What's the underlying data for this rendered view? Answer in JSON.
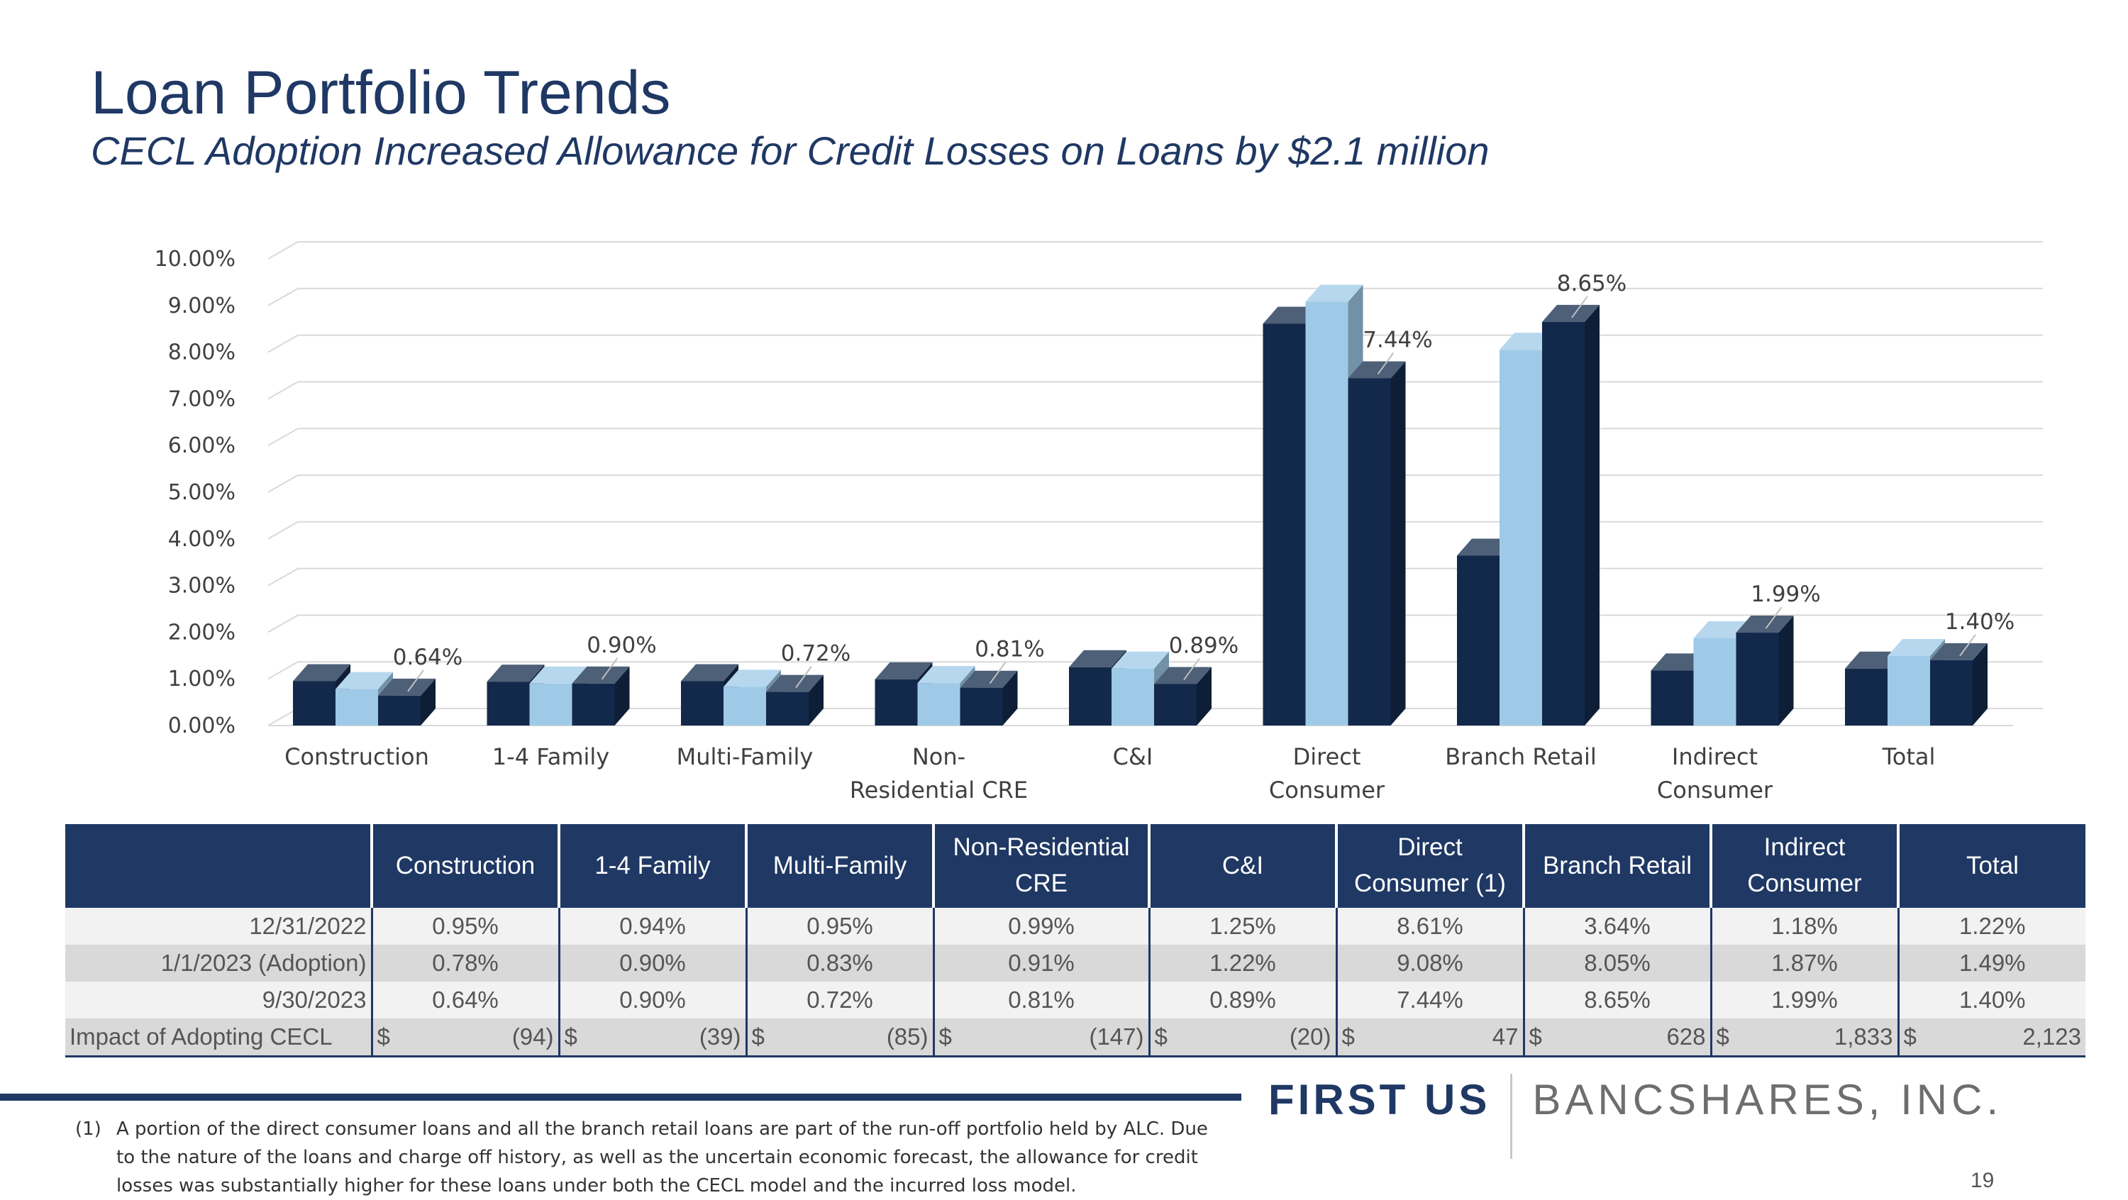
{
  "title": "Loan Portfolio Trends",
  "subtitle": "CECL Adoption Increased Allowance for Credit Losses on Loans by $2.1 million",
  "colors": {
    "dark_navy": "#13294b",
    "light_blue": "#9ecae8",
    "header": "#1f3864"
  },
  "chart_data": {
    "type": "bar",
    "title": "",
    "xlabel": "",
    "ylabel": "",
    "ylim": [
      0,
      10
    ],
    "yticks": [
      "0.00%",
      "1.00%",
      "2.00%",
      "3.00%",
      "4.00%",
      "5.00%",
      "6.00%",
      "7.00%",
      "8.00%",
      "9.00%",
      "10.00%"
    ],
    "categories": [
      "Construction",
      "1-4 Family",
      "Multi-Family",
      "Non-Residential CRE",
      "C&I",
      "Direct Consumer",
      "Branch Retail",
      "Indirect Consumer",
      "Total"
    ],
    "category_lines": [
      [
        "Construction"
      ],
      [
        "1-4 Family"
      ],
      [
        "Multi-Family"
      ],
      [
        "Non-",
        "Residential CRE"
      ],
      [
        "C&I"
      ],
      [
        "Direct",
        "Consumer"
      ],
      [
        "Branch Retail"
      ],
      [
        "Indirect",
        "Consumer"
      ],
      [
        "Total"
      ]
    ],
    "series": [
      {
        "name": "12/31/2022",
        "color": "#13294b",
        "values": [
          0.95,
          0.94,
          0.95,
          0.99,
          1.25,
          8.61,
          3.64,
          1.18,
          1.22
        ]
      },
      {
        "name": "1/1/2023 (Adoption)",
        "color": "#9ecae8",
        "values": [
          0.78,
          0.9,
          0.83,
          0.91,
          1.22,
          9.08,
          8.05,
          1.87,
          1.49
        ]
      },
      {
        "name": "9/30/2023",
        "color": "#13294b",
        "values": [
          0.64,
          0.9,
          0.72,
          0.81,
          0.89,
          7.44,
          8.65,
          1.99,
          1.4
        ]
      }
    ],
    "data_labels": [
      "0.64%",
      "0.90%",
      "0.72%",
      "0.81%",
      "0.89%",
      "7.44%",
      "8.65%",
      "1.99%",
      "1.40%"
    ],
    "grid": true,
    "legend": "none"
  },
  "table": {
    "headers": [
      "",
      "Construction",
      "1-4 Family",
      "Multi-Family",
      "Non-Residential CRE",
      "C&I",
      "Direct Consumer (1)",
      "Branch Retail",
      "Indirect Consumer",
      "Total"
    ],
    "rows": [
      {
        "label": "12/31/2022",
        "cells": [
          "0.95%",
          "0.94%",
          "0.95%",
          "0.99%",
          "1.25%",
          "8.61%",
          "3.64%",
          "1.18%",
          "1.22%"
        ]
      },
      {
        "label": "1/1/2023 (Adoption)",
        "cells": [
          "0.78%",
          "0.90%",
          "0.83%",
          "0.91%",
          "1.22%",
          "9.08%",
          "8.05%",
          "1.87%",
          "1.49%"
        ]
      },
      {
        "label": "9/30/2023",
        "cells": [
          "0.64%",
          "0.90%",
          "0.72%",
          "0.81%",
          "0.89%",
          "7.44%",
          "8.65%",
          "1.99%",
          "1.40%"
        ]
      }
    ],
    "impact": {
      "label": "Impact of Adopting CECL",
      "currency": "$",
      "values": [
        "(94)",
        "(39)",
        "(85)",
        "(147)",
        "(20)",
        "47",
        "628",
        "1,833",
        "2,123"
      ]
    }
  },
  "logo": {
    "part1": "FIRST US",
    "part2": "BANCSHARES, INC."
  },
  "footnote": {
    "marker": "(1)",
    "text": "A portion of the direct consumer loans and all the branch retail loans are part of the run-off portfolio held by ALC. Due to the nature of the loans and charge off history, as well as the uncertain economic forecast, the allowance for credit losses was substantially higher for these loans under both the CECL model and the incurred loss model."
  },
  "page_number": "19"
}
